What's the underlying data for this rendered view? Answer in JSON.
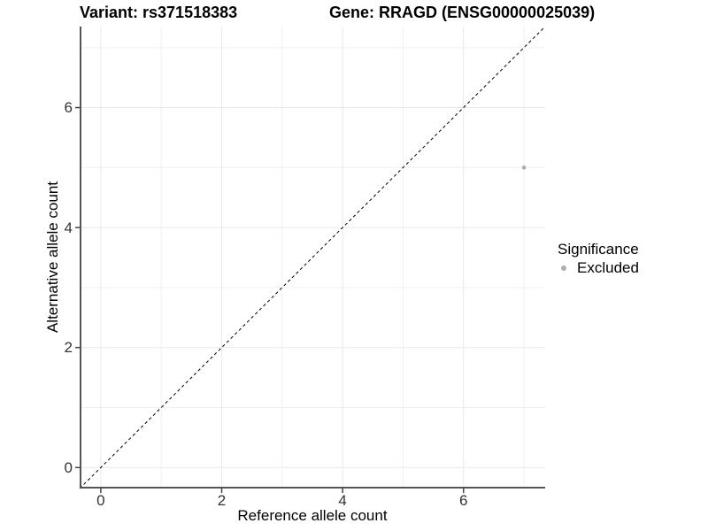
{
  "header": {
    "variant_title": "Variant: rs371518383",
    "gene_title": "Gene: RRAGD (ENSG00000025039)"
  },
  "axes": {
    "x_label": "Reference allele count",
    "y_label": "Alternative allele count"
  },
  "legend": {
    "title": "Significance",
    "items": [
      {
        "label": "Excluded",
        "color": "#aeaeae"
      }
    ]
  },
  "chart_data": {
    "type": "scatter",
    "title": "Variant: rs371518383 | Gene: RRAGD (ENSG00000025039)",
    "xlabel": "Reference allele count",
    "ylabel": "Alternative allele count",
    "xlim": [
      -0.35,
      7.35
    ],
    "ylim": [
      -0.35,
      7.35
    ],
    "x_ticks": [
      0,
      2,
      4,
      6
    ],
    "y_ticks": [
      0,
      2,
      4,
      6
    ],
    "x_minor_ticks": [
      1,
      3,
      5,
      7
    ],
    "y_minor_ticks": [
      1,
      3,
      5,
      7
    ],
    "grid": true,
    "legend_position": "right",
    "series": [
      {
        "name": "Excluded",
        "color": "#aeaeae",
        "points": [
          {
            "x": 7,
            "y": 5
          }
        ]
      }
    ],
    "reference_line": {
      "type": "identity",
      "equation": "y = x",
      "style": "dashed",
      "color": "#000000"
    },
    "colors": {
      "background": "#ffffff",
      "grid_major": "#e9e9e9",
      "grid_minor": "#f0f0f0",
      "axis_line": "#555555",
      "tick_mark": "#444444",
      "tick_text": "#333333"
    }
  }
}
